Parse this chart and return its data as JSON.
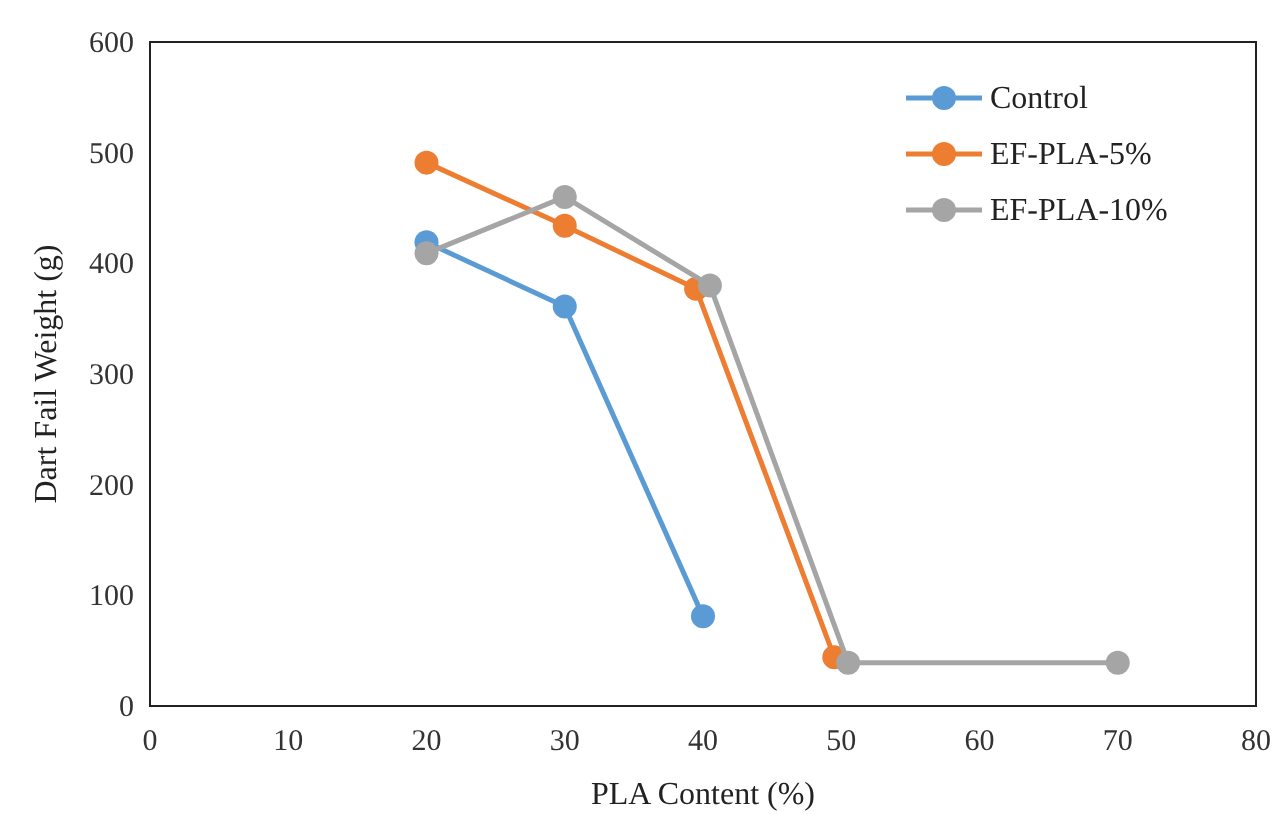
{
  "chart_data": {
    "type": "line",
    "xlabel": "PLA Content (%)",
    "ylabel": "Dart Fail Weight (g)",
    "xlim": [
      0,
      80
    ],
    "xticks": [
      0,
      10,
      20,
      30,
      40,
      50,
      60,
      70,
      80
    ],
    "ylim": [
      0,
      600
    ],
    "yticks": [
      0,
      100,
      200,
      300,
      400,
      500,
      600
    ],
    "grid": false,
    "legend": "top right",
    "marker": "circle",
    "line_style": "solid",
    "series": [
      {
        "name": "Control",
        "color": "#5b9bd5",
        "x": [
          20,
          30,
          40
        ],
        "values": [
          419,
          361,
          81
        ]
      },
      {
        "name": "EF-PLA-5%",
        "color": "#ed7d31",
        "x": [
          20,
          30,
          39.5,
          49.5
        ],
        "values": [
          491,
          434,
          377,
          44
        ]
      },
      {
        "name": "EF-PLA-10%",
        "color": "#a5a5a5",
        "x": [
          20,
          30,
          40.5,
          50.5,
          70
        ],
        "values": [
          409,
          460,
          380,
          39,
          39
        ]
      }
    ]
  }
}
